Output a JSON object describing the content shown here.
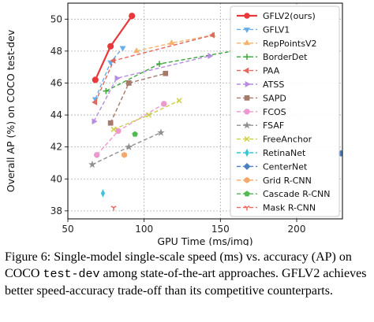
{
  "chart_data": {
    "type": "line",
    "xlabel": "GPU Time (ms/img)",
    "ylabel": "Overall AP (%) on COCO test-dev",
    "xlim": [
      50,
      230
    ],
    "ylim": [
      37.5,
      51
    ],
    "xticks": [
      50,
      100,
      150,
      200
    ],
    "yticks": [
      38,
      40,
      42,
      44,
      46,
      48,
      50
    ],
    "grid": true,
    "legend_position": "top-right",
    "series": [
      {
        "name": "GFLV2(ours)",
        "color": "#e8383b",
        "marker": "circle",
        "x": [
          68,
          78,
          92
        ],
        "y": [
          46.2,
          48.3,
          50.2
        ]
      },
      {
        "name": "GFLV1",
        "color": "#6aaee8",
        "marker": "triangle-down",
        "x": [
          68,
          78,
          86
        ],
        "y": [
          45.0,
          47.3,
          48.2
        ]
      },
      {
        "name": "RepPointsV2",
        "color": "#f5b26b",
        "marker": "triangle-up",
        "x": [
          95,
          118,
          145
        ],
        "y": [
          48.0,
          48.5,
          49.0
        ]
      },
      {
        "name": "BorderDet",
        "color": "#3aa63a",
        "marker": "plus",
        "x": [
          75,
          110,
          158
        ],
        "y": [
          45.5,
          47.2,
          48.0
        ]
      },
      {
        "name": "PAA",
        "color": "#e0685e",
        "marker": "triangle-left",
        "x": [
          68,
          80,
          145
        ],
        "y": [
          44.8,
          47.4,
          49.0
        ]
      },
      {
        "name": "ATSS",
        "color": "#b78be0",
        "marker": "triangle-right",
        "x": [
          67,
          82,
          143
        ],
        "y": [
          43.6,
          46.3,
          47.7
        ]
      },
      {
        "name": "SAPD",
        "color": "#a47a6a",
        "marker": "square",
        "x": [
          78,
          90,
          114
        ],
        "y": [
          43.5,
          46.0,
          46.6
        ]
      },
      {
        "name": "FCOS",
        "color": "#ee98d0",
        "marker": "circle",
        "x": [
          69,
          83,
          113
        ],
        "y": [
          41.5,
          43.0,
          44.7
        ]
      },
      {
        "name": "FSAF",
        "color": "#909090",
        "marker": "star",
        "x": [
          66,
          90,
          111
        ],
        "y": [
          40.9,
          42.0,
          42.9
        ]
      },
      {
        "name": "FreeAnchor",
        "color": "#cfcf45",
        "marker": "x",
        "x": [
          80,
          103,
          123
        ],
        "y": [
          43.1,
          44.0,
          44.9
        ]
      },
      {
        "name": "RetinaNet",
        "color": "#3dc4d6",
        "marker": "thin-diamond",
        "x": [
          73
        ],
        "y": [
          39.1
        ]
      },
      {
        "name": "CenterNet",
        "color": "#4a80bf",
        "marker": "diamond",
        "x": [
          229
        ],
        "y": [
          41.6
        ]
      },
      {
        "name": "Grid R-CNN",
        "color": "#f5a86b",
        "marker": "hexagon",
        "x": [
          87
        ],
        "y": [
          41.5
        ]
      },
      {
        "name": "Cascade R-CNN",
        "color": "#52b852",
        "marker": "pentagon",
        "x": [
          94
        ],
        "y": [
          42.8
        ]
      },
      {
        "name": "Mask R-CNN",
        "color": "#e86a5e",
        "marker": "tri-down",
        "x": [
          80
        ],
        "y": [
          38.2
        ]
      }
    ]
  },
  "caption": {
    "part1": "Figure 6: Single-model single-scale speed (ms) vs. accuracy (AP) on COCO ",
    "code": "test-dev",
    "part2": " among state-of-the-art approaches. GFLV2 achieves better speed-accuracy trade-off than its competitive counterparts."
  }
}
